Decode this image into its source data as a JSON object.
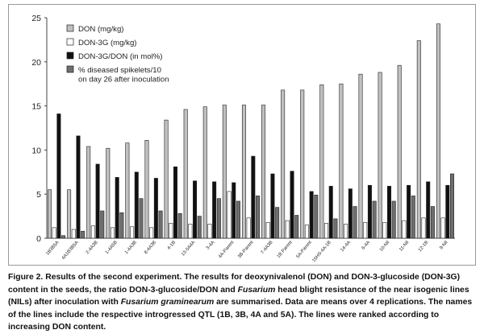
{
  "chart_data": {
    "type": "bar",
    "categories": [
      "1B3B5A",
      "4A1B3B5A",
      "2-4A3B",
      "1-4A5B",
      "1-4A3B",
      "8-4A3B",
      "4-1B",
      "13-5A4A",
      "3-4A",
      "4A-Parent",
      "3B-Parent",
      "7-4A3B",
      "1B Parent",
      "5A-Parent",
      "15HS-4A-1B",
      "14-4A",
      "6-4A",
      "10-Nil",
      "11-Nil",
      "12-1B",
      "9-Nil"
    ],
    "series": [
      {
        "name": "DON (mg/kg)",
        "color": "#c0c0c0",
        "values": [
          5.5,
          5.5,
          10.4,
          10.2,
          10.8,
          11.1,
          13.4,
          14.6,
          14.9,
          15.1,
          15.1,
          15.1,
          16.8,
          16.8,
          17.4,
          17.5,
          18.6,
          18.8,
          19.6,
          22.4,
          24.3
        ]
      },
      {
        "name": "DON-3G (mg/kg)",
        "color": "#ffffff",
        "values": [
          1.2,
          1.0,
          1.4,
          1.2,
          1.3,
          1.2,
          1.7,
          1.6,
          1.6,
          5.3,
          2.3,
          1.8,
          2.0,
          1.5,
          1.7,
          1.6,
          1.8,
          1.8,
          2.0,
          2.3,
          2.3
        ]
      },
      {
        "name": "DON-3G/DON (in mol%)",
        "color": "#111111",
        "values": [
          14.1,
          11.6,
          8.4,
          6.9,
          7.5,
          6.8,
          8.1,
          6.5,
          6.4,
          6.3,
          9.3,
          7.3,
          7.6,
          5.3,
          5.9,
          5.6,
          6.0,
          5.9,
          6.0,
          6.4,
          6.0
        ]
      },
      {
        "name": "% diseased spikelets/10\non day 26 after inoculation",
        "color": "#6e6e6e",
        "values": [
          0.3,
          0.8,
          3.1,
          2.9,
          4.5,
          3.1,
          2.8,
          2.5,
          4.5,
          4.2,
          4.8,
          3.5,
          2.6,
          4.9,
          2.2,
          3.6,
          4.2,
          4.2,
          4.8,
          3.6,
          7.3
        ]
      }
    ],
    "y_ticks": [
      "0",
      "5",
      "10",
      "15",
      "20",
      "25"
    ],
    "ylim": [
      0,
      25
    ],
    "title": "",
    "xlabel": "",
    "ylabel": "",
    "legend_position": "top-left",
    "grid": false
  },
  "caption": {
    "prefix": "Figure 2. Results of the second experiment. The results for deoxynivalenol (DON) and DON-3-glucoside (DON-3G) content in the seeds, the ratio DON-3-glucoside/DON and ",
    "italic1": "Fusarium",
    "middle": " head blight resistance of the near isogenic lines (NILs) after inoculation with ",
    "italic2": "Fusarium graminearum",
    "suffix": " are summarised. Data are means over 4 replications. The names of the lines include the respective introgressed QTL (1B, 3B, 4A and 5A). The lines were ranked according to increasing DON content."
  }
}
